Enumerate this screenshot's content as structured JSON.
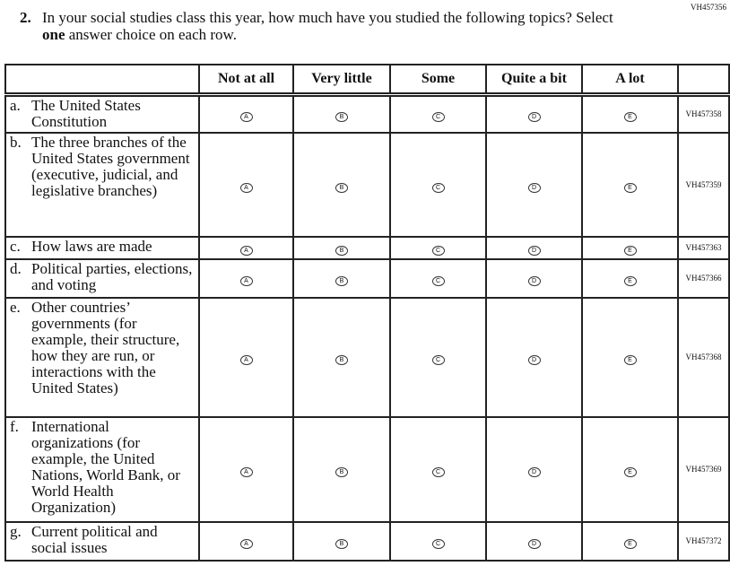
{
  "question_id": "VH457356",
  "question": {
    "number": "2.",
    "text_before": "In your social studies class this year, how much have you studied the following topics? Select ",
    "text_bold": "one",
    "text_after": " answer choice on each row."
  },
  "columns": [
    "Not at all",
    "Very little",
    "Some",
    "Quite a bit",
    "A lot"
  ],
  "bubbles": [
    "A",
    "B",
    "C",
    "D",
    "E"
  ],
  "rows": [
    {
      "letter": "a.",
      "text": "The United States Constitution",
      "id": "VH457358"
    },
    {
      "letter": "b.",
      "text": "The three branches of the United States government (executive, judicial, and legislative branches)",
      "id": "VH457359"
    },
    {
      "letter": "c.",
      "text": "How laws are made",
      "id": "VH457363"
    },
    {
      "letter": "d.",
      "text": "Political parties, elections, and voting",
      "id": "VH457366"
    },
    {
      "letter": "e.",
      "text": "Other countries’ governments (for example, their structure, how they are run, or interactions with the United States)",
      "id": "VH457368"
    },
    {
      "letter": "f.",
      "text": "International organizations (for example, the United Nations, World Bank, or World Health Organization)",
      "id": "VH457369"
    },
    {
      "letter": "g.",
      "text": "Current political and social issues",
      "id": "VH457372"
    }
  ]
}
